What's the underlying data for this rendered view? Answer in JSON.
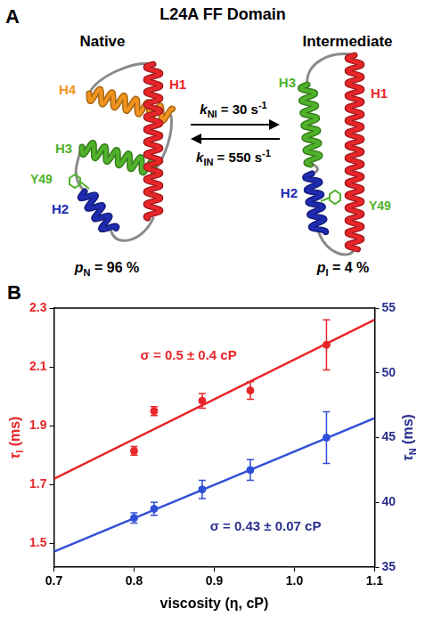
{
  "panel_a": {
    "letter": "A",
    "title": "L24A FF Domain",
    "native": {
      "label": "Native",
      "helices": [
        {
          "label": "H1",
          "color": "#e8262a"
        },
        {
          "label": "H2",
          "color": "#1f2bb0"
        },
        {
          "label": "H3",
          "color": "#4fb22a"
        },
        {
          "label": "H4",
          "color": "#f0931e"
        }
      ],
      "residue": {
        "label": "Y49",
        "color": "#4fb22a"
      },
      "population": {
        "symbol": "p",
        "subscript": "N",
        "text": " = 96 %"
      }
    },
    "intermediate": {
      "label": "Intermediate",
      "helices": [
        {
          "label": "H1",
          "color": "#e8262a"
        },
        {
          "label": "H2",
          "color": "#1f2bb0"
        },
        {
          "label": "H3",
          "color": "#4fb22a"
        }
      ],
      "residue": {
        "label": "Y49",
        "color": "#4fb22a"
      },
      "population": {
        "symbol": "p",
        "subscript": "I",
        "text": " = 4 %"
      }
    },
    "rates": [
      {
        "symbol": "k",
        "subscript": "NI",
        "text": " = 30 s",
        "superscript": "-1"
      },
      {
        "symbol": "k",
        "subscript": "IN",
        "text": " = 550 s",
        "superscript": "-1"
      }
    ]
  },
  "panel_b": {
    "letter": "B"
  },
  "chart_data": {
    "type": "scatter",
    "x_label": "viscosity (η, cP)",
    "y_label": {
      "symbol": "τ",
      "subscript": "I",
      "text": " (ms)",
      "color": "#e8262a"
    },
    "y2_label": {
      "symbol": "τ",
      "subscript": "N",
      "text": " (ms)",
      "color": "#2a2f8f"
    },
    "xlim": [
      0.7,
      1.1
    ],
    "xticks": [
      0.7,
      0.8,
      0.9,
      {
        "value": 1,
        "label": "1.0"
      },
      1.1
    ],
    "ylim": [
      1.42,
      2.3
    ],
    "yticks": [
      1.5,
      1.7,
      1.9,
      2.1,
      2.3
    ],
    "y2lim": [
      35,
      55
    ],
    "y2ticks": [
      35,
      40,
      45,
      50,
      55
    ],
    "grid": false,
    "series": [
      {
        "color": "#e8262a",
        "marker": "circle",
        "x": [
          0.8,
          0.825,
          0.885,
          0.945,
          1.04
        ],
        "values": [
          1.815,
          1.95,
          1.985,
          2.02,
          2.175
        ],
        "errors": [
          0.015,
          0.015,
          0.025,
          0.03,
          0.085
        ]
      },
      {
        "color": "#e8262a",
        "type": "line",
        "line_style": "solid",
        "x": [
          0.7,
          1.1
        ],
        "values": [
          1.72,
          2.26
        ]
      },
      {
        "color": "#2f4fd8",
        "marker": "circle",
        "axis": "y2",
        "x": [
          0.8,
          0.825,
          0.885,
          0.945,
          1.04
        ],
        "values": [
          38.8,
          39.5,
          41.0,
          42.5,
          45.0
        ],
        "errors": [
          0.4,
          0.5,
          0.7,
          0.8,
          2.0
        ]
      },
      {
        "color": "#2f4fd8",
        "type": "line",
        "line_style": "solid",
        "axis": "y2",
        "x": [
          0.7,
          1.1
        ],
        "values": [
          36.2,
          46.5
        ]
      }
    ],
    "annotations": [
      {
        "text": "σ = 0.5 ± 0.4 cP",
        "color": "#e8262a",
        "axis": "y"
      },
      {
        "text": "σ = 0.43 ± 0.07 cP",
        "color": "#2a2f8f",
        "axis": "y2"
      }
    ]
  }
}
